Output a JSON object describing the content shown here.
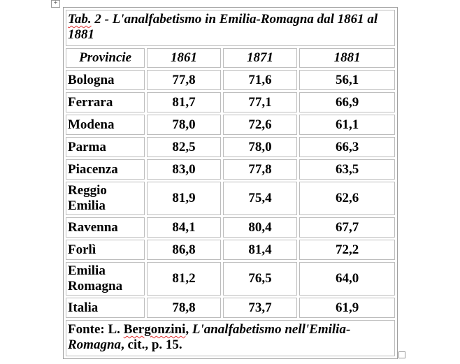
{
  "title": {
    "abbr": "Tab.",
    "rest": " 2 - L'analfabetismo in Emilia-Romagna dal 1861 al 1881"
  },
  "headers": [
    "Provincie",
    "1861",
    "1871",
    "1881"
  ],
  "rows": [
    {
      "name": "Bologna",
      "v": [
        "77,8",
        "71,6",
        "56,1"
      ]
    },
    {
      "name": "Ferrara",
      "v": [
        "81,7",
        "77,1",
        "66,9"
      ]
    },
    {
      "name": "Modena",
      "v": [
        "78,0",
        "72,6",
        "61,1"
      ]
    },
    {
      "name": "Parma",
      "v": [
        "82,5",
        "78,0",
        "66,3"
      ]
    },
    {
      "name": "Piacenza",
      "v": [
        "83,0",
        "77,8",
        "63,5"
      ]
    },
    {
      "name": "Reggio Emilia",
      "v": [
        "81,9",
        "75,4",
        "62,6"
      ]
    },
    {
      "name": "Ravenna",
      "v": [
        "84,1",
        "80,4",
        "67,7"
      ]
    },
    {
      "name": "Forlì",
      "v": [
        "86,8",
        "81,4",
        "72,2"
      ]
    },
    {
      "name": "Emilia Romagna",
      "v": [
        "81,2",
        "76,5",
        "64,0"
      ]
    },
    {
      "name": "Italia",
      "v": [
        "78,8",
        "73,7",
        "61,9"
      ]
    }
  ],
  "source": {
    "prefix": "Fonte: L. ",
    "author": "Bergonzini",
    "comma": ", ",
    "work": "L'analfabetismo nell'Emilia-Romagna",
    "suffix": ", cit., p. 15."
  },
  "icons": {
    "move": "table-move-handle-icon",
    "resize": "table-resize-handle-icon"
  }
}
